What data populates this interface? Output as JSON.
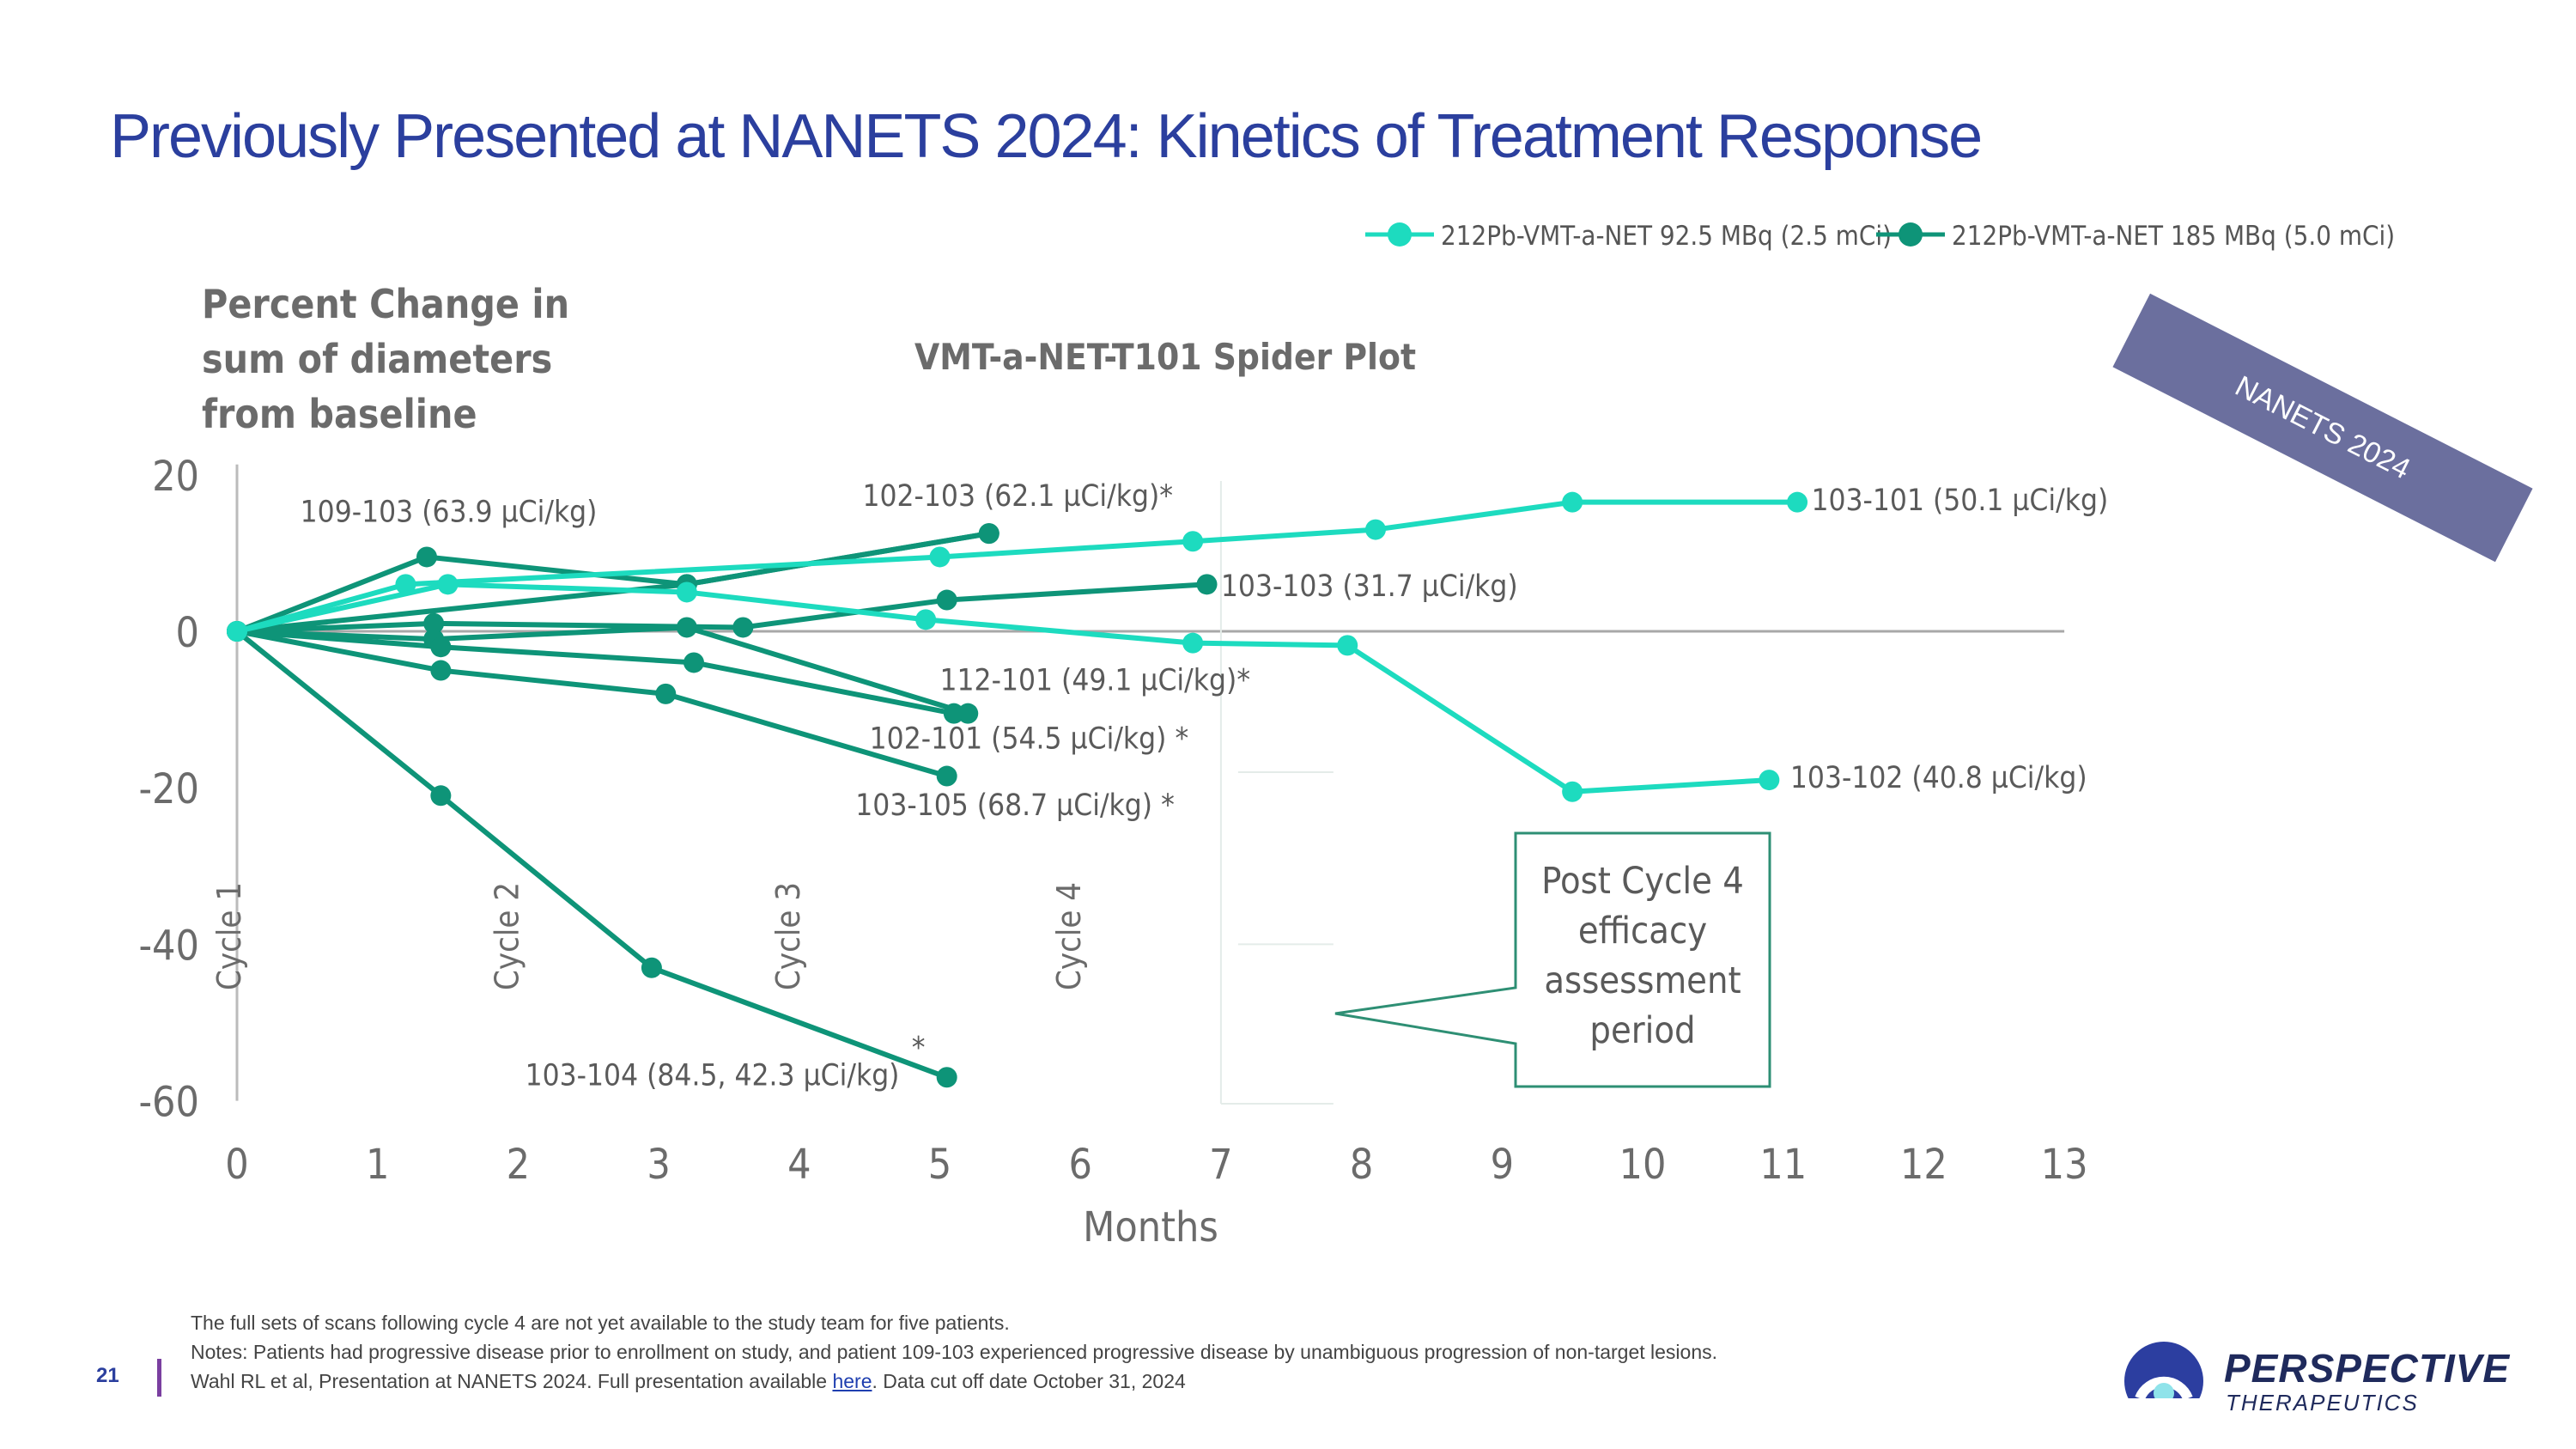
{
  "header": {
    "title": "Previously Presented at NANETS 2024: Kinetics of Treatment Response"
  },
  "banner": {
    "label": "NANETS 2024"
  },
  "chart_data": {
    "type": "line",
    "title": "VMT-a-NET-T101 Spider Plot",
    "ylabel_lines": [
      "Percent Change in",
      "sum of diameters",
      "from baseline"
    ],
    "xlabel": "Months",
    "xlim": [
      0,
      13
    ],
    "ylim": [
      -60,
      20
    ],
    "xticks": [
      0,
      1,
      2,
      3,
      4,
      5,
      6,
      7,
      8,
      9,
      10,
      11,
      12,
      13
    ],
    "yticks": [
      20,
      0,
      -20,
      -40,
      -60
    ],
    "legend_position": "top-right",
    "legend": [
      {
        "label": "212Pb-VMT-a-NET 92.5 MBq (2.5 mCi)",
        "color": "#1ddbbf"
      },
      {
        "label": "212Pb-VMT-a-NET 185 MBq (5.0 mCi)",
        "color": "#0e9478"
      }
    ],
    "cycles": [
      {
        "label": "Cycle 1",
        "x": 0
      },
      {
        "label": "Cycle 2",
        "x": 2
      },
      {
        "label": "Cycle 3",
        "x": 4
      },
      {
        "label": "Cycle 4",
        "x": 6
      }
    ],
    "callout": {
      "lines": [
        "Post Cycle 4",
        "efficacy",
        "assessment",
        "period"
      ],
      "x_start": 7
    },
    "series": [
      {
        "name": "103-101 (50.1 µCi/kg)",
        "dose": "low",
        "x": [
          0,
          1.2,
          5,
          6.8,
          8.1,
          9.5,
          11.1
        ],
        "y": [
          0,
          6,
          9.5,
          11.5,
          13,
          16.5,
          16.5
        ]
      },
      {
        "name": "103-102 (40.8 µCi/kg)",
        "dose": "low",
        "x": [
          0,
          1.5,
          3.2,
          4.9,
          6.8,
          7.9,
          9.5,
          10.9
        ],
        "y": [
          0,
          6,
          5,
          1.5,
          -1.5,
          -1.8,
          -20.5,
          -19
        ]
      },
      {
        "name": "109-103 (63.9 µCi/kg)",
        "dose": "high",
        "x": [
          0,
          1.35,
          3.2,
          5.35
        ],
        "y": [
          0,
          9.5,
          6,
          12.5
        ]
      },
      {
        "name": "102-103 (62.1 µCi/kg)*",
        "dose": "high",
        "x": [
          0,
          3.2,
          5.35
        ],
        "y": [
          0,
          6,
          12.5
        ]
      },
      {
        "name": "103-103 (31.7 µCi/kg)",
        "dose": "high",
        "x": [
          0,
          1.4,
          3.6,
          5.05,
          6.9
        ],
        "y": [
          0,
          1,
          0.5,
          4,
          6
        ]
      },
      {
        "name": "112-101 (49.1 µCi/kg)*",
        "dose": "high",
        "x": [
          0,
          1.4,
          3.2,
          5.2
        ],
        "y": [
          0,
          -1,
          0.5,
          -10.5
        ]
      },
      {
        "name": "102-101 (54.5 µCi/kg)*",
        "dose": "high",
        "x": [
          0,
          1.45,
          3.25,
          5.1
        ],
        "y": [
          0,
          -2,
          -4,
          -10.5
        ]
      },
      {
        "name": "103-105 (68.7 µCi/kg)*",
        "dose": "high",
        "x": [
          0,
          1.45,
          3.05,
          5.05
        ],
        "y": [
          0,
          -5,
          -8,
          -18.5
        ]
      },
      {
        "name": "103-104 (84.5, 42.3 µCi/kg)*",
        "dose": "high",
        "x": [
          0,
          1.45,
          2.95,
          5.05
        ],
        "y": [
          0,
          -21,
          -43,
          -57
        ]
      }
    ],
    "annotations": [
      {
        "text": "109-103 (63.9 µCi/kg)",
        "x": 0.45,
        "y": 14
      },
      {
        "text": "102-103 (62.1 µCi/kg)*",
        "x": 4.45,
        "y": 16
      },
      {
        "text": "103-101 (50.1 µCi/kg)",
        "x": 11.2,
        "y": 15.5
      },
      {
        "text": "103-103 (31.7 µCi/kg)",
        "x": 7,
        "y": 4.5
      },
      {
        "text": "112-101 (49.1 µCi/kg)*",
        "x": 5,
        "y": -7.5
      },
      {
        "text": "102-101 (54.5 µCi/kg) *",
        "x": 4.5,
        "y": -15
      },
      {
        "text": "103-105 (68.7 µCi/kg) *",
        "x": 4.4,
        "y": -23.5
      },
      {
        "text": "103-102 (40.8 µCi/kg)",
        "x": 11.05,
        "y": -20
      },
      {
        "text": "103-104 (84.5, 42.3 µCi/kg)",
        "x": 2.05,
        "y": -58
      },
      {
        "text": "*",
        "x": 4.8,
        "y": -54.5
      }
    ]
  },
  "footnotes": {
    "line1": "The full sets of scans following cycle 4 are not yet available to the study team for five patients.",
    "line2": "Notes: Patients had progressive disease prior to enrollment on study, and patient 109-103 experienced progressive disease by unambiguous progression of non-target lesions.",
    "line3_pre": "Wahl RL et al, Presentation at NANETS 2024. Full presentation available ",
    "line3_link": "here",
    "line3_post": ". Data cut off date October 31, 2024"
  },
  "page": {
    "number": "21"
  },
  "logo": {
    "name": "PERSPECTIVE",
    "sub": "THERAPEUTICS"
  }
}
